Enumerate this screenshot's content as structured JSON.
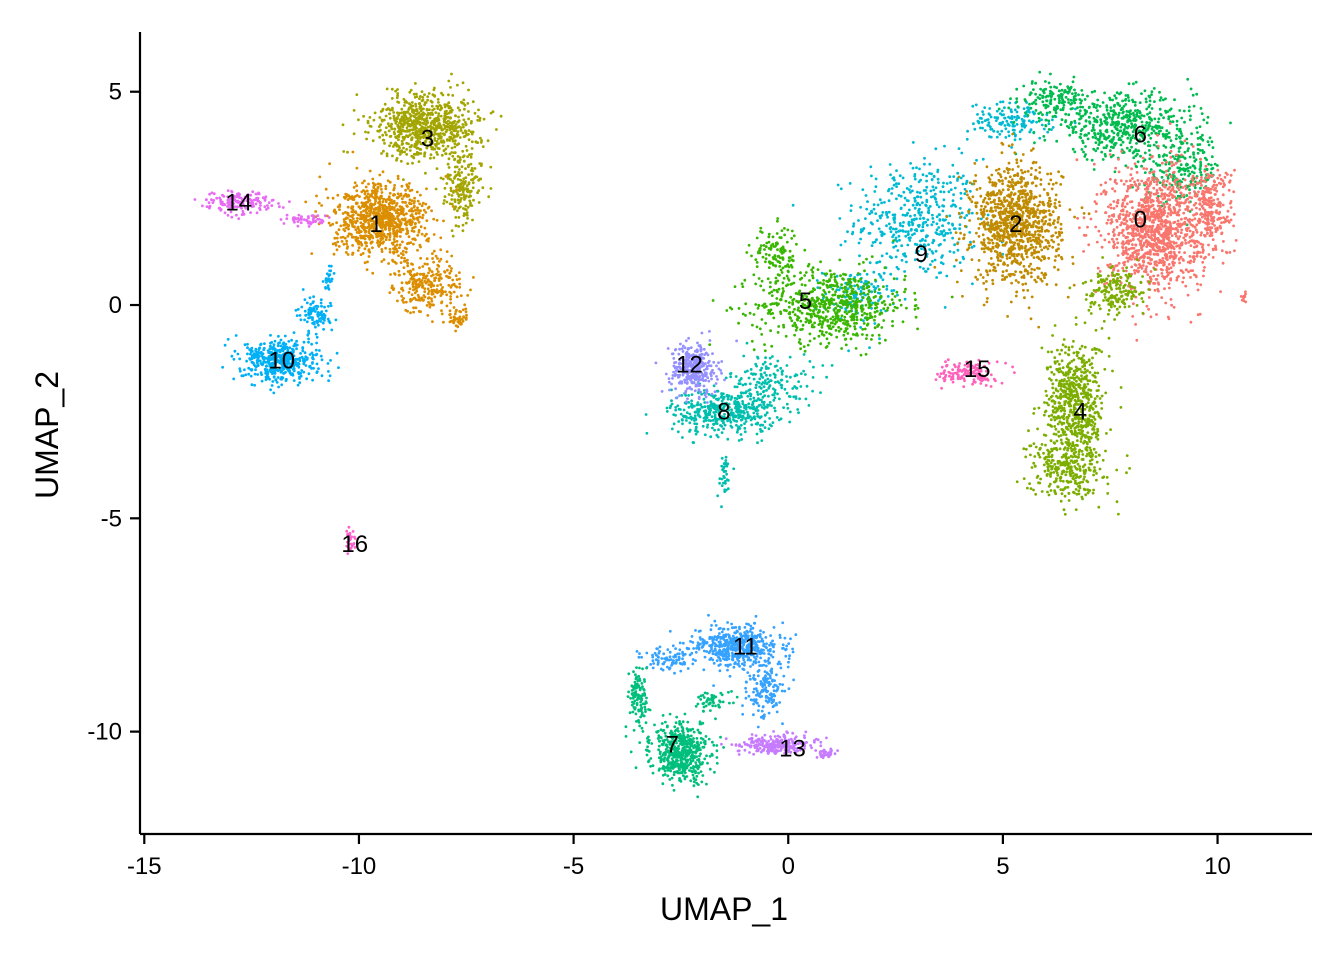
{
  "chart_data": {
    "type": "scatter",
    "xlabel": "UMAP_1",
    "ylabel": "UMAP_2",
    "xlim": [
      -15.1,
      12.2
    ],
    "ylim": [
      -12.4,
      6.4
    ],
    "xticks": [
      -15,
      -10,
      -5,
      0,
      5,
      10
    ],
    "xtick_labels": [
      "-15",
      "-10",
      "-5",
      "0",
      "5",
      "10"
    ],
    "yticks": [
      -10,
      -5,
      0,
      5
    ],
    "ytick_labels": [
      "-10",
      "-5",
      "0",
      "5"
    ],
    "grid": false,
    "legend": "none",
    "clusters": [
      {
        "label": "0",
        "color": "#F8766D",
        "center": [
          8.2,
          2.0
        ]
      },
      {
        "label": "1",
        "color": "#DB8E00",
        "center": [
          -9.6,
          1.9
        ]
      },
      {
        "label": "2",
        "color": "#C08B00",
        "center": [
          5.3,
          1.9
        ]
      },
      {
        "label": "3",
        "color": "#A3A500",
        "center": [
          -8.4,
          3.9
        ]
      },
      {
        "label": "4",
        "color": "#7CAE00",
        "center": [
          6.8,
          -2.5
        ]
      },
      {
        "label": "5",
        "color": "#39B600",
        "center": [
          0.4,
          0.1
        ]
      },
      {
        "label": "6",
        "color": "#00BB4E",
        "center": [
          8.2,
          4.0
        ]
      },
      {
        "label": "7",
        "color": "#00BF7D",
        "center": [
          -2.7,
          -10.3
        ]
      },
      {
        "label": "8",
        "color": "#00BFAE",
        "center": [
          -1.5,
          -2.5
        ]
      },
      {
        "label": "9",
        "color": "#00BAD4",
        "center": [
          3.1,
          1.2
        ]
      },
      {
        "label": "10",
        "color": "#00B0F6",
        "center": [
          -11.8,
          -1.3
        ]
      },
      {
        "label": "11",
        "color": "#35A2FF",
        "center": [
          -1.0,
          -8.0
        ]
      },
      {
        "label": "12",
        "color": "#9590FF",
        "center": [
          -2.3,
          -1.4
        ]
      },
      {
        "label": "13",
        "color": "#C77CFF",
        "center": [
          0.1,
          -10.4
        ]
      },
      {
        "label": "14",
        "color": "#E76BF3",
        "center": [
          -12.8,
          2.4
        ]
      },
      {
        "label": "15",
        "color": "#FF62BC",
        "center": [
          4.4,
          -1.5
        ]
      },
      {
        "label": "16",
        "color": "#FD61D1",
        "center": [
          -10.1,
          -5.6
        ]
      }
    ]
  }
}
